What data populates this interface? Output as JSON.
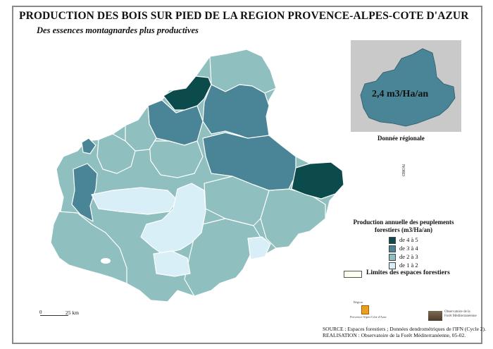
{
  "title": "PRODUCTION DES BOIS SUR PIED DE LA REGION PROVENCE-ALPES-COTE D'AZUR",
  "subtitle": "Des essences montagnardes plus productives",
  "inset": {
    "value": "2,4 m3/Ha/an",
    "caption": "Donnée régionale",
    "fill": "#4a8497"
  },
  "north_label": "NORD",
  "legend": {
    "title_line1": "Production annuelle des peuplements",
    "title_line2": "forestiers (m3/Ha/an)",
    "classes": [
      {
        "label": "de 4 à 5",
        "color": "#0b4b4b"
      },
      {
        "label": "de 3 à 4",
        "color": "#4a8497"
      },
      {
        "label": "de 2 à 3",
        "color": "#8fbfbf"
      },
      {
        "label": "de 1 à 2",
        "color": "#d9eff7"
      }
    ],
    "forest_label": "Limites des espaces forestiers"
  },
  "scale": {
    "zero": "0",
    "label": "25 km"
  },
  "logos": {
    "region_top": "Région",
    "region_bottom": "Provence-Alpes-Côte d'Azur",
    "observatoire": "Observatoire de la Forêt Méditerranéenne"
  },
  "source": {
    "line1": "SOURCE : Espaces forestiers ; Données dendrométriques de l'IFN (Cycle 2).",
    "line2": "REALISATION : Observatoire de la Forêt Méditerranéenne, 05-02."
  },
  "colors": {
    "class_4_5": "#0b4b4b",
    "class_3_4": "#4a8497",
    "class_2_3": "#8fbfbf",
    "class_1_2": "#d9eff7",
    "border": "#ffffff",
    "inset_background": "#c9c9c9"
  }
}
